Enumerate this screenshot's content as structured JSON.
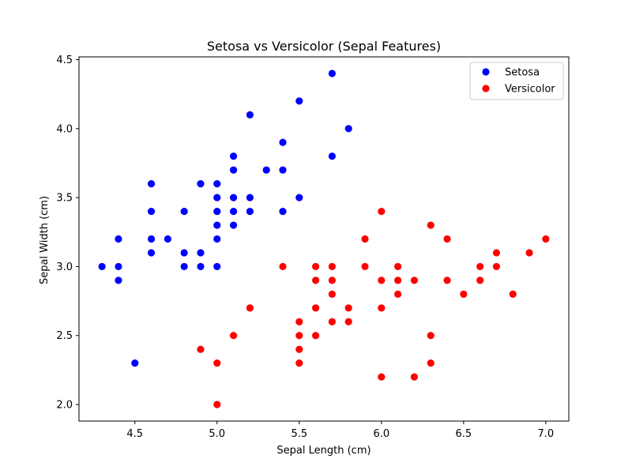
{
  "chart_data": {
    "type": "scatter",
    "title": "Setosa vs Versicolor (Sepal Features)",
    "xlabel": "Sepal Length (cm)",
    "ylabel": "Sepal Width (cm)",
    "xlim": [
      4.16,
      7.14
    ],
    "ylim": [
      1.88,
      4.52
    ],
    "xticks": [
      "4.5",
      "5.0",
      "5.5",
      "6.0",
      "6.5",
      "7.0"
    ],
    "yticks": [
      "2.0",
      "2.5",
      "3.0",
      "3.5",
      "4.0",
      "4.5"
    ],
    "grid": false,
    "legend_position": "top-right",
    "series": [
      {
        "name": "Setosa",
        "color": "#0000ff",
        "points": [
          [
            4.3,
            3.0
          ],
          [
            4.4,
            3.2
          ],
          [
            4.4,
            3.0
          ],
          [
            4.4,
            2.9
          ],
          [
            4.5,
            2.3
          ],
          [
            4.6,
            3.6
          ],
          [
            4.6,
            3.4
          ],
          [
            4.6,
            3.2
          ],
          [
            4.6,
            3.1
          ],
          [
            4.7,
            3.2
          ],
          [
            4.8,
            3.4
          ],
          [
            4.8,
            3.1
          ],
          [
            4.8,
            3.0
          ],
          [
            4.9,
            3.6
          ],
          [
            4.9,
            3.1
          ],
          [
            4.9,
            3.0
          ],
          [
            5.0,
            3.6
          ],
          [
            5.0,
            3.5
          ],
          [
            5.0,
            3.4
          ],
          [
            5.0,
            3.3
          ],
          [
            5.0,
            3.2
          ],
          [
            5.0,
            3.0
          ],
          [
            5.1,
            3.8
          ],
          [
            5.1,
            3.7
          ],
          [
            5.1,
            3.5
          ],
          [
            5.1,
            3.4
          ],
          [
            5.1,
            3.3
          ],
          [
            5.2,
            4.1
          ],
          [
            5.2,
            3.5
          ],
          [
            5.2,
            3.4
          ],
          [
            5.3,
            3.7
          ],
          [
            5.4,
            3.9
          ],
          [
            5.4,
            3.7
          ],
          [
            5.4,
            3.4
          ],
          [
            5.5,
            4.2
          ],
          [
            5.5,
            3.5
          ],
          [
            5.7,
            4.4
          ],
          [
            5.7,
            3.8
          ],
          [
            5.8,
            4.0
          ]
        ]
      },
      {
        "name": "Versicolor",
        "color": "#ff0000",
        "points": [
          [
            4.9,
            2.4
          ],
          [
            5.0,
            2.3
          ],
          [
            5.0,
            2.0
          ],
          [
            5.1,
            2.5
          ],
          [
            5.2,
            2.7
          ],
          [
            5.4,
            3.0
          ],
          [
            5.5,
            2.6
          ],
          [
            5.5,
            2.5
          ],
          [
            5.5,
            2.4
          ],
          [
            5.5,
            2.3
          ],
          [
            5.6,
            3.0
          ],
          [
            5.6,
            2.9
          ],
          [
            5.6,
            2.7
          ],
          [
            5.6,
            2.5
          ],
          [
            5.7,
            3.0
          ],
          [
            5.7,
            2.9
          ],
          [
            5.7,
            2.8
          ],
          [
            5.7,
            2.6
          ],
          [
            5.8,
            2.7
          ],
          [
            5.8,
            2.6
          ],
          [
            5.9,
            3.2
          ],
          [
            5.9,
            3.0
          ],
          [
            6.0,
            3.4
          ],
          [
            6.0,
            2.9
          ],
          [
            6.0,
            2.7
          ],
          [
            6.0,
            2.2
          ],
          [
            6.1,
            3.0
          ],
          [
            6.1,
            2.9
          ],
          [
            6.1,
            2.8
          ],
          [
            6.2,
            2.9
          ],
          [
            6.2,
            2.2
          ],
          [
            6.3,
            3.3
          ],
          [
            6.3,
            2.5
          ],
          [
            6.3,
            2.3
          ],
          [
            6.4,
            3.2
          ],
          [
            6.4,
            2.9
          ],
          [
            6.5,
            2.8
          ],
          [
            6.6,
            3.0
          ],
          [
            6.6,
            2.9
          ],
          [
            6.7,
            3.1
          ],
          [
            6.7,
            3.0
          ],
          [
            6.8,
            2.8
          ],
          [
            6.9,
            3.1
          ],
          [
            7.0,
            3.2
          ]
        ]
      }
    ]
  }
}
